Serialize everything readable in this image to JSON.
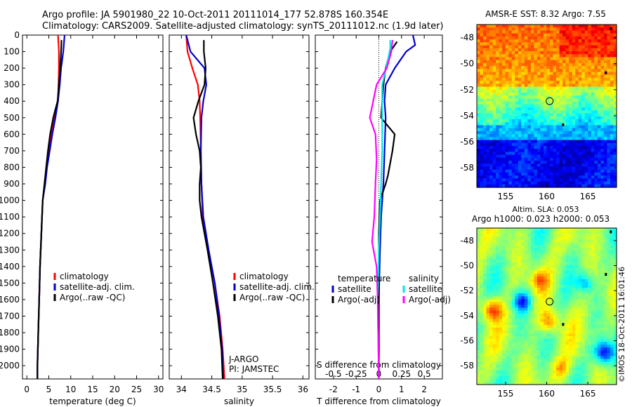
{
  "header": {
    "line1": "Argo profile: JA 5901980_22 10-Oct-2011 20111014_177 52.878S 160.354E",
    "line2": "Climatology: CARS2009. Satellite-adjusted climatology: synTS_20111012.nc (1.9d later)"
  },
  "colors": {
    "climatology": "#ff0000",
    "satellite": "#0000cc",
    "argo": "#000000",
    "sal_satellite": "#00e5e5",
    "sal_argo": "#ff00ff"
  },
  "chart_data": [
    {
      "id": "temperature",
      "type": "line",
      "xlabel": "temperature (deg C)",
      "ylabel": "",
      "xlim": [
        -1,
        31
      ],
      "ylim": [
        0,
        2080
      ],
      "xticks": [
        "0",
        "5",
        "10",
        "15",
        "20",
        "25",
        "30"
      ],
      "yticks": [
        "0",
        "100",
        "200",
        "300",
        "400",
        "500",
        "600",
        "700",
        "800",
        "900",
        "1000",
        "1100",
        "1200",
        "1300",
        "1400",
        "1500",
        "1600",
        "1700",
        "1800",
        "1900",
        "2000"
      ],
      "legend": [
        "climatology",
        "satellite-adj. clim.",
        "Argo(..raw -QC)"
      ],
      "series": [
        {
          "name": "climatology",
          "color": "#ff0000",
          "points": [
            [
              7.1,
              0
            ],
            [
              7.3,
              100
            ],
            [
              7.3,
              200
            ],
            [
              7.2,
              300
            ],
            [
              7.1,
              400
            ],
            [
              6.3,
              500
            ],
            [
              5.5,
              600
            ],
            [
              4.9,
              700
            ],
            [
              4.4,
              800
            ],
            [
              4.1,
              900
            ],
            [
              3.6,
              1000
            ],
            [
              3.3,
              1200
            ],
            [
              3.0,
              1400
            ],
            [
              2.8,
              1600
            ],
            [
              2.6,
              1800
            ],
            [
              2.4,
              2000
            ],
            [
              2.4,
              2080
            ]
          ]
        },
        {
          "name": "satellite-adj. clim.",
          "color": "#0000cc",
          "points": [
            [
              8.6,
              0
            ],
            [
              8.3,
              100
            ],
            [
              7.8,
              200
            ],
            [
              7.5,
              300
            ],
            [
              7.1,
              400
            ],
            [
              6.5,
              500
            ],
            [
              5.8,
              600
            ],
            [
              5.2,
              700
            ],
            [
              4.6,
              800
            ],
            [
              4.2,
              900
            ],
            [
              3.6,
              1000
            ],
            [
              3.3,
              1200
            ],
            [
              3.0,
              1400
            ],
            [
              2.8,
              1600
            ],
            [
              2.6,
              1800
            ],
            [
              2.4,
              2000
            ],
            [
              2.4,
              2080
            ]
          ]
        },
        {
          "name": "Argo(..raw -QC)",
          "color": "#000000",
          "points": [
            [
              7.9,
              30
            ],
            [
              7.8,
              100
            ],
            [
              7.6,
              200
            ],
            [
              7.3,
              300
            ],
            [
              7.0,
              400
            ],
            [
              6.0,
              500
            ],
            [
              5.3,
              600
            ],
            [
              4.8,
              700
            ],
            [
              4.4,
              800
            ],
            [
              4.0,
              900
            ],
            [
              3.6,
              1000
            ],
            [
              3.3,
              1200
            ],
            [
              3.0,
              1400
            ],
            [
              2.8,
              1600
            ],
            [
              2.6,
              1800
            ],
            [
              2.4,
              2000
            ],
            [
              2.4,
              2080
            ]
          ]
        }
      ]
    },
    {
      "id": "salinity",
      "type": "line",
      "xlabel": "salinity",
      "xlim": [
        33.8,
        36.1
      ],
      "ylim": [
        0,
        2080
      ],
      "xticks": [
        "34",
        "34.5",
        "35",
        "35.5",
        "36"
      ],
      "legend": [
        "climatology",
        "satellite-adj. clim.",
        "Argo(..raw -QC)"
      ],
      "annotations": [
        "J-ARGO",
        "PI: JAMSTEC"
      ],
      "series": [
        {
          "name": "climatology",
          "color": "#ff0000",
          "points": [
            [
              34.08,
              0
            ],
            [
              34.1,
              100
            ],
            [
              34.18,
              200
            ],
            [
              34.27,
              300
            ],
            [
              34.3,
              400
            ],
            [
              34.31,
              500
            ],
            [
              34.32,
              700
            ],
            [
              34.33,
              900
            ],
            [
              34.35,
              1100
            ],
            [
              34.44,
              1300
            ],
            [
              34.55,
              1500
            ],
            [
              34.63,
              1700
            ],
            [
              34.68,
              1900
            ],
            [
              34.71,
              2080
            ]
          ]
        },
        {
          "name": "satellite-adj. clim.",
          "color": "#0000cc",
          "points": [
            [
              34.08,
              0
            ],
            [
              34.15,
              100
            ],
            [
              34.38,
              200
            ],
            [
              34.41,
              300
            ],
            [
              34.36,
              400
            ],
            [
              34.33,
              500
            ],
            [
              34.32,
              700
            ],
            [
              34.33,
              900
            ],
            [
              34.36,
              1100
            ],
            [
              34.45,
              1300
            ],
            [
              34.55,
              1500
            ],
            [
              34.62,
              1700
            ],
            [
              34.67,
              1900
            ],
            [
              34.69,
              2080
            ]
          ]
        },
        {
          "name": "Argo(..raw -QC)",
          "color": "#000000",
          "points": [
            [
              34.37,
              30
            ],
            [
              34.37,
              100
            ],
            [
              34.4,
              200
            ],
            [
              34.38,
              300
            ],
            [
              34.28,
              400
            ],
            [
              34.2,
              500
            ],
            [
              34.24,
              600
            ],
            [
              34.3,
              700
            ],
            [
              34.32,
              800
            ],
            [
              34.3,
              900
            ],
            [
              34.3,
              1000
            ],
            [
              34.33,
              1100
            ],
            [
              34.43,
              1300
            ],
            [
              34.52,
              1500
            ],
            [
              34.6,
              1700
            ],
            [
              34.66,
              1900
            ],
            [
              34.68,
              2080
            ]
          ]
        }
      ]
    },
    {
      "id": "difference",
      "type": "line",
      "xlabel": "T difference from climatology",
      "top_label": "S difference from climatology",
      "xlim": [
        -2.8,
        2.8
      ],
      "ylim": [
        0,
        2080
      ],
      "xticks": [
        "-2",
        "-1",
        "0",
        "1",
        "2"
      ],
      "top_ticks": [
        "-0.5",
        "-0.25",
        "0",
        "0.25",
        "0.5"
      ],
      "legend_temperature": {
        "title": "temperature",
        "items": [
          "satellite",
          "Argo(-adj)"
        ]
      },
      "legend_salinity": {
        "title": "salinity",
        "items": [
          "satellite",
          "Argo(-adj)"
        ]
      },
      "series": [
        {
          "name": "temperature satellite",
          "color": "#0000cc",
          "points": [
            [
              1.5,
              0
            ],
            [
              1.6,
              60
            ],
            [
              1.2,
              100
            ],
            [
              0.7,
              200
            ],
            [
              0.3,
              300
            ],
            [
              0.25,
              400
            ],
            [
              0.3,
              500
            ],
            [
              0.25,
              700
            ],
            [
              0.2,
              900
            ],
            [
              0.1,
              1100
            ],
            [
              0.05,
              1300
            ],
            [
              0.0,
              1600
            ],
            [
              0.0,
              2080
            ]
          ]
        },
        {
          "name": "temperature Argo(-adj)",
          "color": "#000000",
          "points": [
            [
              0.8,
              40
            ],
            [
              0.5,
              100
            ],
            [
              0.3,
              200
            ],
            [
              0.2,
              300
            ],
            [
              0.1,
              500
            ],
            [
              0.7,
              600
            ],
            [
              0.6,
              700
            ],
            [
              0.4,
              850
            ],
            [
              0.3,
              900
            ],
            [
              0.05,
              1000
            ],
            [
              0.0,
              1200
            ],
            [
              0.0,
              2080
            ]
          ]
        },
        {
          "name": "salinity satellite",
          "color": "#00e5e5",
          "points": [
            [
              0.5,
              30
            ],
            [
              0.5,
              80
            ],
            [
              0.4,
              150
            ],
            [
              0.15,
              300
            ],
            [
              0.15,
              500
            ],
            [
              0.15,
              700
            ],
            [
              0.1,
              900
            ],
            [
              0.05,
              1100
            ],
            [
              0.0,
              1300
            ],
            [
              -0.05,
              1600
            ],
            [
              0.0,
              2080
            ]
          ]
        },
        {
          "name": "salinity Argo(-adj)",
          "color": "#ff00ff",
          "points": [
            [
              0.6,
              30
            ],
            [
              0.55,
              100
            ],
            [
              0.35,
              200
            ],
            [
              -0.1,
              300
            ],
            [
              -0.4,
              500
            ],
            [
              -0.15,
              600
            ],
            [
              -0.1,
              750
            ],
            [
              -0.15,
              900
            ],
            [
              -0.2,
              1100
            ],
            [
              -0.3,
              1250
            ],
            [
              -0.1,
              1400
            ],
            [
              -0.05,
              1600
            ],
            [
              0.0,
              2080
            ]
          ]
        }
      ]
    },
    {
      "id": "sst_map",
      "type": "heatmap",
      "title": "AMSR-E SST: 8.32  Argo: 7.55",
      "xticks": [
        "155",
        "160",
        "165"
      ],
      "yticks": [
        "-48",
        "-50",
        "-52",
        "-54",
        "-56",
        "-58"
      ],
      "xlim": [
        151.5,
        168.5
      ],
      "ylim": [
        -59.5,
        -47
      ],
      "profile_location": [
        160.354,
        -52.878
      ]
    },
    {
      "id": "sla_map",
      "type": "heatmap",
      "title": "Altim. SLA: 0.053",
      "subtitle": "Argo h1000: 0.023 h2000: 0.053",
      "xticks": [
        "155",
        "160",
        "165"
      ],
      "yticks": [
        "-48",
        "-50",
        "-52",
        "-54",
        "-56",
        "-58"
      ],
      "xlim": [
        151.5,
        168.5
      ],
      "ylim": [
        -59.5,
        -47
      ],
      "profile_location": [
        160.354,
        -52.878
      ],
      "credit": "©IMOS 18-Oct-2011 16:01:46"
    }
  ]
}
